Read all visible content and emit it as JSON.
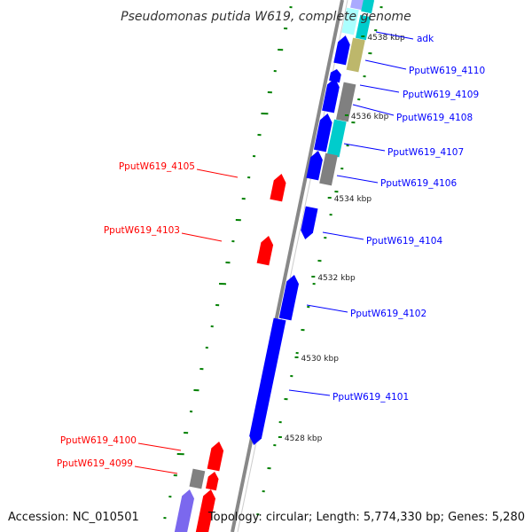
{
  "title": "Pseudomonas putida W619, complete genome",
  "accession_text": "Accession: NC_010501",
  "topology_text": "Topology: circular; Length: 5,774,330 bp; Genes: 5,280",
  "colors": {
    "forward_cds": "#0000ff",
    "reverse_cds": "#ff0000",
    "rna": "#808080",
    "cyan_feature": "#00cccc",
    "khaki_feature": "#bdb76b",
    "light_blue_feature": "#aaaaff",
    "gc_skew_marks": "#008000",
    "backbone": "#888888"
  },
  "kbp_labels": [
    "4538 kbp",
    "4536 kbp",
    "4534 kbp",
    "4532 kbp",
    "4530 kbp",
    "4528 kbp"
  ],
  "gene_labels_forward": [
    "adk",
    "PputW619_4110",
    "PputW619_4109",
    "PputW619_4108",
    "PputW619_4107",
    "PputW619_4106",
    "PputW619_4104",
    "PputW619_4102",
    "PputW619_4101"
  ],
  "gene_labels_reverse": [
    "PputW619_4105",
    "PputW619_4103",
    "PputW619_4100",
    "PputW619_4099"
  ]
}
